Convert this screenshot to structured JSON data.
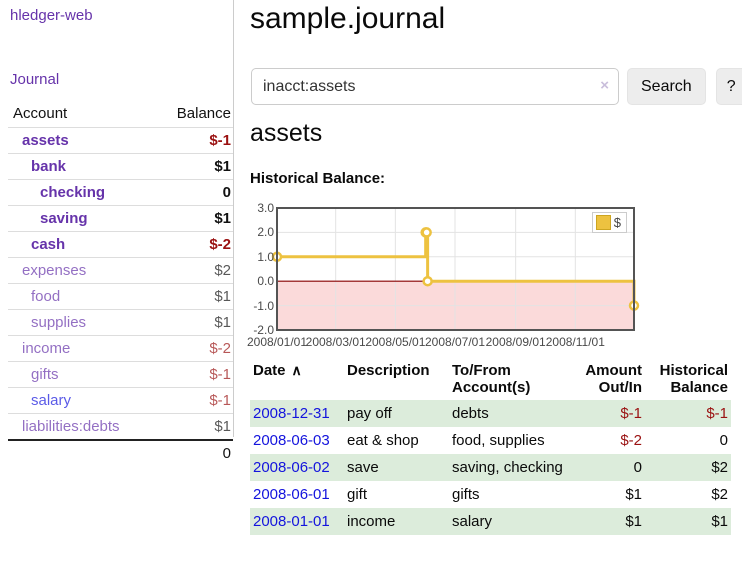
{
  "sidebar": {
    "app_title": "hledger-web",
    "nav": {
      "journal": "Journal"
    },
    "table": {
      "headers": {
        "account": "Account",
        "balance": "Balance"
      },
      "rows": [
        {
          "name": "assets",
          "indent": 1,
          "bold": true,
          "dimmed": false,
          "balance": "$-1",
          "negative": true,
          "unvisited": false
        },
        {
          "name": "bank",
          "indent": 2,
          "bold": true,
          "dimmed": false,
          "balance": "$1",
          "negative": false,
          "unvisited": false
        },
        {
          "name": "checking",
          "indent": 3,
          "bold": true,
          "dimmed": false,
          "balance": "0",
          "negative": false,
          "unvisited": false
        },
        {
          "name": "saving",
          "indent": 3,
          "bold": true,
          "dimmed": false,
          "balance": "$1",
          "negative": false,
          "unvisited": false
        },
        {
          "name": "cash",
          "indent": 2,
          "bold": true,
          "dimmed": false,
          "balance": "$-2",
          "negative": true,
          "unvisited": false
        },
        {
          "name": "expenses",
          "indent": 1,
          "bold": false,
          "dimmed": true,
          "balance": "$2",
          "negative": false,
          "unvisited": false
        },
        {
          "name": "food",
          "indent": 2,
          "bold": false,
          "dimmed": true,
          "balance": "$1",
          "negative": false,
          "unvisited": false
        },
        {
          "name": "supplies",
          "indent": 2,
          "bold": false,
          "dimmed": true,
          "balance": "$1",
          "negative": false,
          "unvisited": false
        },
        {
          "name": "income",
          "indent": 1,
          "bold": false,
          "dimmed": true,
          "balance": "$-2",
          "negative": true,
          "unvisited": false
        },
        {
          "name": "gifts",
          "indent": 2,
          "bold": false,
          "dimmed": true,
          "balance": "$-1",
          "negative": true,
          "unvisited": false
        },
        {
          "name": "salary",
          "indent": 2,
          "bold": false,
          "dimmed": true,
          "balance": "$-1",
          "negative": true,
          "unvisited": true
        },
        {
          "name": "liabilities:debts",
          "indent": 1,
          "bold": false,
          "dimmed": true,
          "balance": "$1",
          "negative": false,
          "unvisited": false
        }
      ],
      "total": "0"
    }
  },
  "main": {
    "title": "sample.journal",
    "search": {
      "value": "inacct:assets",
      "clear_icon": "×",
      "button": "Search",
      "help_button": "?"
    },
    "account_heading": "assets",
    "chart_label": "Historical Balance:",
    "register": {
      "headers": [
        "Date",
        "Description",
        "To/From Account(s)",
        "Amount Out/In",
        "Historical Balance"
      ],
      "sort_icon": "∧",
      "rows": [
        {
          "date": "2008-12-31",
          "description": "pay off",
          "accounts": "debts",
          "amount": "$-1",
          "amount_negative": true,
          "balance": "$-1",
          "balance_negative": true
        },
        {
          "date": "2008-06-03",
          "description": "eat & shop",
          "accounts": "food, supplies",
          "amount": "$-2",
          "amount_negative": true,
          "balance": "0",
          "balance_negative": false
        },
        {
          "date": "2008-06-02",
          "description": "save",
          "accounts": "saving, checking",
          "amount": "0",
          "amount_negative": false,
          "balance": "$2",
          "balance_negative": false
        },
        {
          "date": "2008-06-01",
          "description": "gift",
          "accounts": "gifts",
          "amount": "$1",
          "amount_negative": false,
          "balance": "$2",
          "balance_negative": false
        },
        {
          "date": "2008-01-01",
          "description": "income",
          "accounts": "salary",
          "amount": "$1",
          "amount_negative": false,
          "balance": "$1",
          "balance_negative": false
        }
      ]
    }
  },
  "chart_data": {
    "type": "line",
    "subtype": "step",
    "title": "Historical Balance:",
    "legend": "$",
    "legend_position": "top-right",
    "series": [
      {
        "name": "$",
        "points": [
          [
            "2008-01-01",
            1
          ],
          [
            "2008-06-01",
            2
          ],
          [
            "2008-06-02",
            2
          ],
          [
            "2008-06-03",
            0
          ],
          [
            "2008-12-31",
            -1
          ]
        ]
      }
    ],
    "x_range": [
      "2008-01-01",
      "2008-12-31"
    ],
    "ylim": [
      -2,
      3
    ],
    "x_ticks": [
      "2008/01/01",
      "2008/03/01",
      "2008/05/01",
      "2008/07/01",
      "2008/09/01",
      "2008/11/01"
    ],
    "y_ticks": [
      "3.0",
      "2.0",
      "1.0",
      "0.0",
      "-1.0",
      "-2.0"
    ],
    "grid": true,
    "line_color": "#edc240",
    "marker": "open-circle",
    "negative_region_color": "#fbdada",
    "zero_line_color": "#8b0000",
    "grid_color": "#e3e3e3",
    "border_color": "#545454"
  },
  "colors": {
    "link_purple": "#6633aa",
    "link_blue": "#1414dd",
    "negative_red": "#9a1111",
    "row_stripe_green": "#dcecdb",
    "chart_gold": "#edc240"
  }
}
